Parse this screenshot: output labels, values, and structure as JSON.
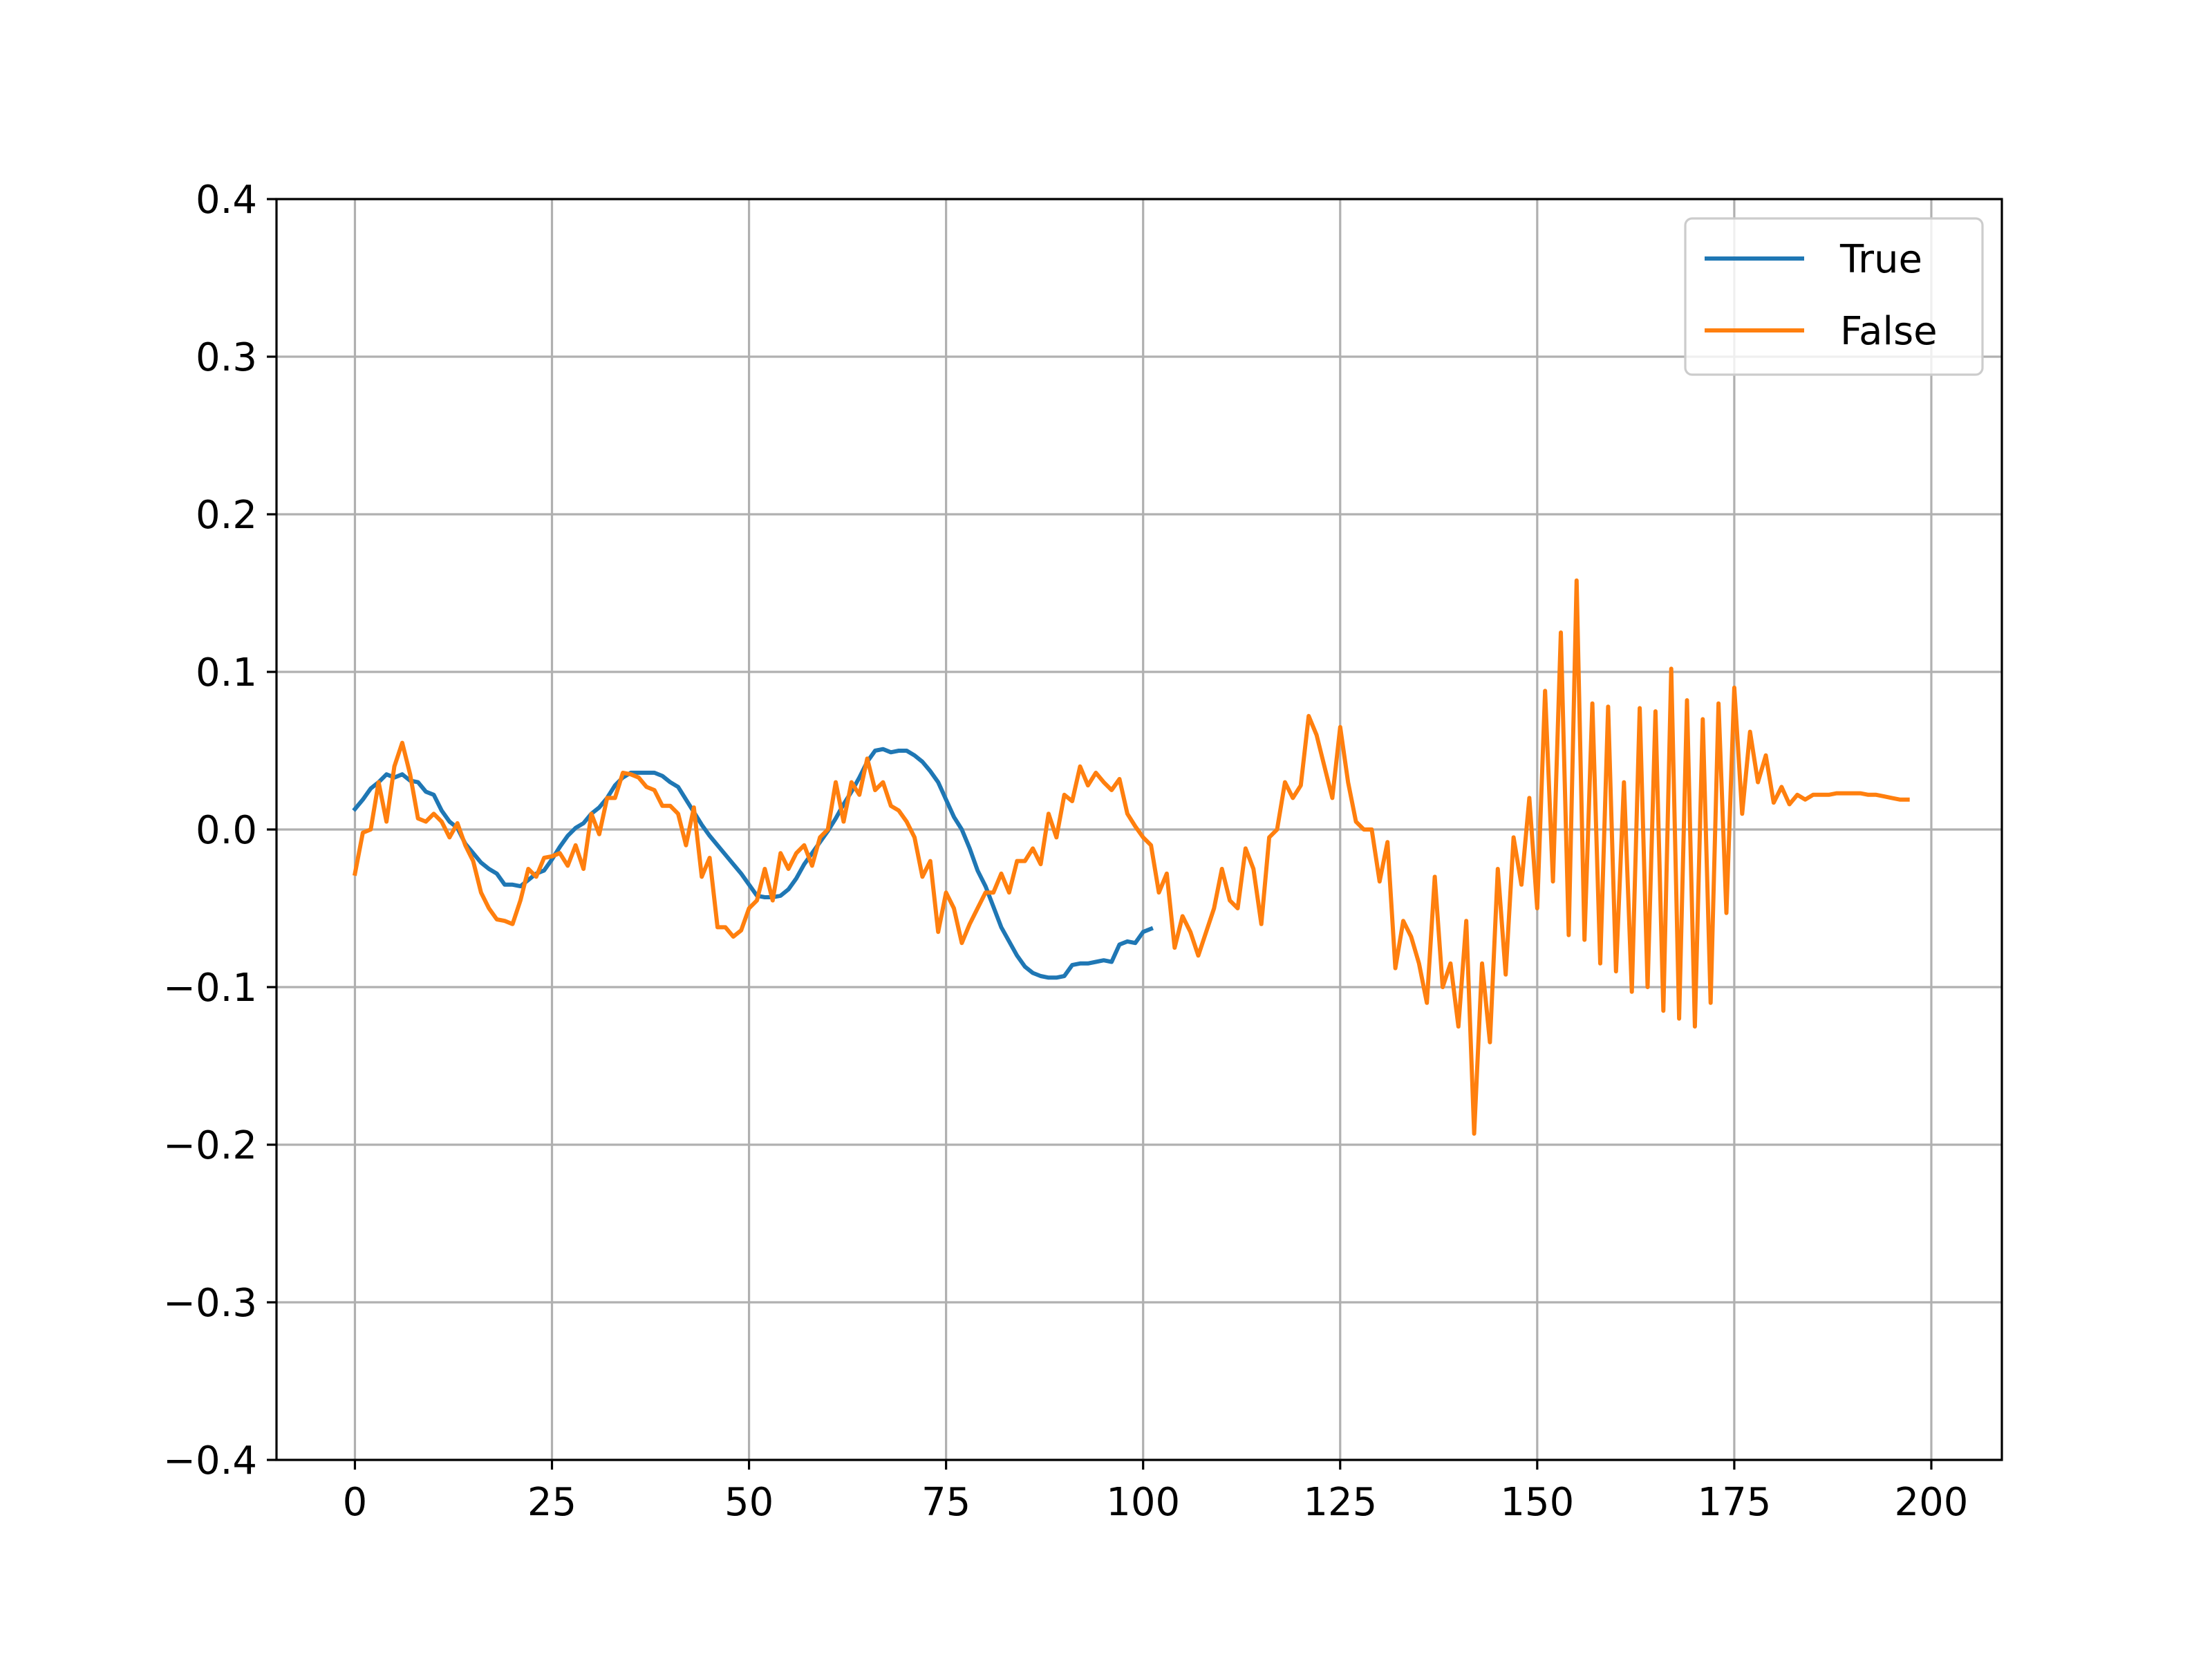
{
  "chart_data": {
    "type": "line",
    "title": "",
    "xlabel": "",
    "ylabel": "",
    "xlim": [
      -9.95,
      208.95
    ],
    "ylim": [
      -0.4,
      0.4
    ],
    "grid": true,
    "legend_position": "upper right",
    "x_ticks": [
      0,
      25,
      50,
      75,
      100,
      125,
      150,
      175,
      200
    ],
    "x_tick_labels": [
      "0",
      "25",
      "50",
      "75",
      "100",
      "125",
      "150",
      "175",
      "200"
    ],
    "y_ticks": [
      -0.4,
      -0.3,
      -0.2,
      -0.1,
      0.0,
      0.1,
      0.2,
      0.3,
      0.4
    ],
    "y_tick_labels": [
      "−0.4",
      "−0.3",
      "−0.2",
      "−0.1",
      "0.0",
      "0.1",
      "0.2",
      "0.3",
      "0.4"
    ],
    "series": [
      {
        "name": "True",
        "color": "#1f77b4",
        "x_start": 0,
        "values": [
          0.013,
          0.019,
          0.026,
          0.03,
          0.035,
          0.033,
          0.035,
          0.031,
          0.03,
          0.024,
          0.022,
          0.012,
          0.005,
          0.001,
          -0.009,
          -0.015,
          -0.021,
          -0.025,
          -0.028,
          -0.035,
          -0.035,
          -0.036,
          -0.032,
          -0.028,
          -0.026,
          -0.019,
          -0.011,
          -0.004,
          0.001,
          0.004,
          0.01,
          0.014,
          0.02,
          0.028,
          0.033,
          0.036,
          0.036,
          0.036,
          0.036,
          0.034,
          0.03,
          0.027,
          0.019,
          0.011,
          0.003,
          -0.004,
          -0.01,
          -0.016,
          -0.022,
          -0.028,
          -0.035,
          -0.042,
          -0.043,
          -0.043,
          -0.042,
          -0.038,
          -0.031,
          -0.022,
          -0.015,
          -0.008,
          -0.001,
          0.007,
          0.016,
          0.024,
          0.033,
          0.043,
          0.05,
          0.051,
          0.049,
          0.05,
          0.05,
          0.047,
          0.043,
          0.037,
          0.03,
          0.019,
          0.008,
          0.0,
          -0.012,
          -0.026,
          -0.036,
          -0.049,
          -0.062,
          -0.071,
          -0.08,
          -0.087,
          -0.091,
          -0.093,
          -0.094,
          -0.094,
          -0.093,
          -0.086,
          -0.085,
          -0.085,
          -0.084,
          -0.083,
          -0.084,
          -0.073,
          -0.071,
          -0.072,
          -0.065,
          -0.063
        ]
      },
      {
        "name": "False",
        "color": "#ff7f0e",
        "x_start": 0,
        "values": [
          -0.028,
          -0.002,
          0.0,
          0.03,
          0.005,
          0.04,
          0.055,
          0.035,
          0.007,
          0.005,
          0.01,
          0.005,
          -0.005,
          0.004,
          -0.01,
          -0.02,
          -0.04,
          -0.05,
          -0.057,
          -0.058,
          -0.06,
          -0.045,
          -0.025,
          -0.03,
          -0.018,
          -0.017,
          -0.015,
          -0.023,
          -0.01,
          -0.025,
          0.01,
          -0.003,
          0.02,
          0.02,
          0.036,
          0.035,
          0.033,
          0.027,
          0.025,
          0.015,
          0.015,
          0.01,
          -0.01,
          0.014,
          -0.03,
          -0.018,
          -0.062,
          -0.062,
          -0.068,
          -0.064,
          -0.05,
          -0.045,
          -0.025,
          -0.045,
          -0.015,
          -0.025,
          -0.015,
          -0.01,
          -0.023,
          -0.005,
          0.0,
          0.03,
          0.005,
          0.03,
          0.022,
          0.045,
          0.025,
          0.03,
          0.015,
          0.012,
          0.005,
          -0.005,
          -0.03,
          -0.02,
          -0.065,
          -0.04,
          -0.05,
          -0.072,
          -0.06,
          -0.05,
          -0.04,
          -0.04,
          -0.028,
          -0.04,
          -0.02,
          -0.02,
          -0.012,
          -0.022,
          0.01,
          -0.005,
          0.022,
          0.018,
          0.04,
          0.028,
          0.036,
          0.03,
          0.025,
          0.032,
          0.01,
          0.002,
          -0.005,
          -0.01,
          -0.04,
          -0.028,
          -0.075,
          -0.055,
          -0.065,
          -0.08,
          -0.065,
          -0.05,
          -0.025,
          -0.045,
          -0.05,
          -0.012,
          -0.025,
          -0.06,
          -0.005,
          0.0,
          0.03,
          0.02,
          0.028,
          0.072,
          0.06,
          0.04,
          0.02,
          0.065,
          0.03,
          0.005,
          0.0,
          0.0,
          -0.033,
          -0.008,
          -0.088,
          -0.058,
          -0.068,
          -0.085,
          -0.11,
          -0.03,
          -0.1,
          -0.085,
          -0.125,
          -0.058,
          -0.193,
          -0.085,
          -0.135,
          -0.025,
          -0.092,
          -0.005,
          -0.035,
          0.02,
          -0.05,
          0.088,
          -0.033,
          0.125,
          -0.067,
          0.158,
          -0.07,
          0.08,
          -0.085,
          0.078,
          -0.09,
          0.03,
          -0.103,
          0.077,
          -0.1,
          0.075,
          -0.115,
          0.102,
          -0.12,
          0.082,
          -0.125,
          0.07,
          -0.11,
          0.08,
          -0.053,
          0.09,
          0.01,
          0.062,
          0.03,
          0.047,
          0.017,
          0.027,
          0.016,
          0.022,
          0.019,
          0.022,
          0.022,
          0.022,
          0.023,
          0.023,
          0.023,
          0.023,
          0.022,
          0.022,
          0.021,
          0.02,
          0.019,
          0.019
        ]
      }
    ]
  }
}
